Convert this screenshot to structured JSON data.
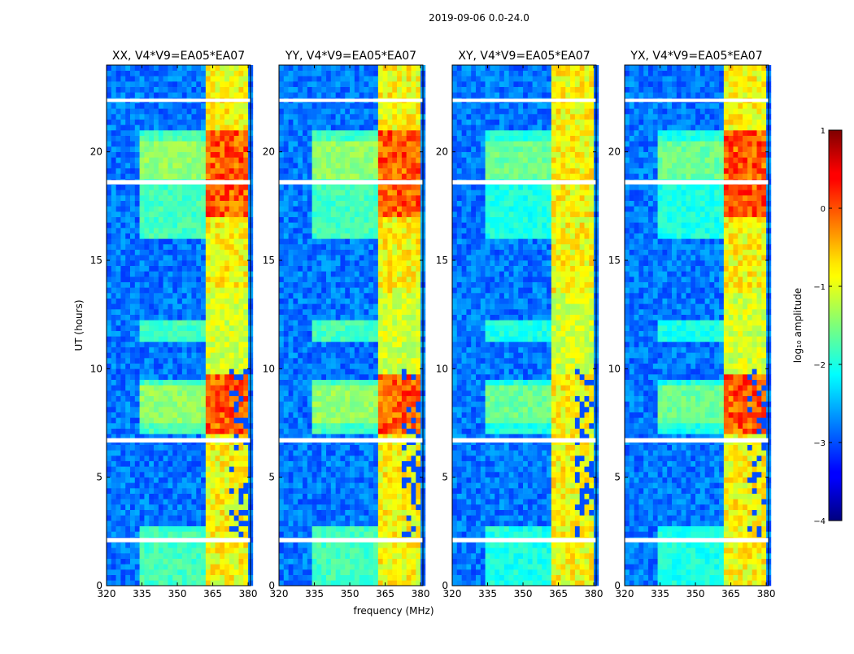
{
  "chart_data": {
    "type": "heatmap",
    "suptitle": "2019-09-06 0.0-24.0",
    "xlabel": "frequency (MHz)",
    "ylabel": "UT (hours)",
    "xlim": [
      320,
      381
    ],
    "ylim": [
      0,
      24
    ],
    "x_ticks": [
      320,
      335,
      350,
      365,
      380
    ],
    "y_ticks": [
      0,
      5,
      10,
      15,
      20
    ],
    "panels": [
      {
        "title": "XX, V4*V9=EA05*EA07",
        "pol": "XX"
      },
      {
        "title": "YY, V4*V9=EA05*EA07",
        "pol": "YY"
      },
      {
        "title": "XY, V4*V9=EA05*EA07",
        "pol": "XY"
      },
      {
        "title": "YX, V4*V9=EA05*EA07",
        "pol": "YX"
      }
    ],
    "colorbar": {
      "label": "log₁₀ amplitude",
      "range": [
        -4,
        1
      ],
      "ticks": [
        -4,
        -3,
        -2,
        -1,
        0,
        1
      ],
      "tick_labels": [
        "−4",
        "−3",
        "−2",
        "−1",
        "0",
        "1"
      ],
      "colormap": "jet"
    },
    "flagged_bands_ut_hours": [
      [
        2.0,
        2.2
      ],
      [
        6.6,
        6.8
      ],
      [
        18.5,
        18.7
      ],
      [
        22.3,
        22.45
      ]
    ],
    "rfi_band_mhz": [
      363,
      381
    ],
    "solar_emission_band_mhz": [
      335,
      362
    ]
  }
}
